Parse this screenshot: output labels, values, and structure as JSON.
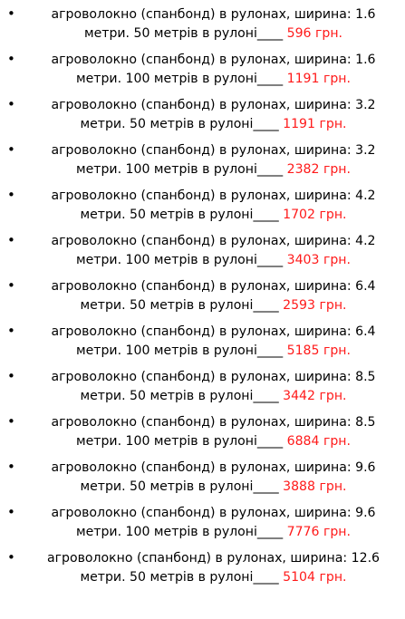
{
  "colors": {
    "text": "#000000",
    "price": "#ff1a1a",
    "background": "#ffffff"
  },
  "bullet_glyph": "•",
  "items": [
    {
      "line1": "агроволокно (спанбонд) в рулонах, ширина: 1.6",
      "line2": "метри. 50 метрів в рулоні____",
      "price": "596 грн."
    },
    {
      "line1": "агроволокно (спанбонд) в рулонах, ширина: 1.6",
      "line2": "метри. 100 метрів в рулоні____",
      "price": "1191 грн."
    },
    {
      "line1": "агроволокно (спанбонд) в рулонах, ширина: 3.2",
      "line2": "метри. 50 метрів в рулоні____",
      "price": "1191 грн."
    },
    {
      "line1": "агроволокно (спанбонд) в рулонах, ширина: 3.2",
      "line2": "метри. 100 метрів в рулоні____",
      "price": "2382 грн."
    },
    {
      "line1": "агроволокно (спанбонд) в рулонах, ширина: 4.2",
      "line2": "метри. 50 метрів в рулоні____",
      "price": "1702 грн."
    },
    {
      "line1": "агроволокно (спанбонд) в рулонах, ширина: 4.2",
      "line2": "метри. 100 метрів в рулоні____",
      "price": "3403 грн."
    },
    {
      "line1": "агроволокно (спанбонд) в рулонах, ширина: 6.4",
      "line2": "метри. 50 метрів в рулоні____",
      "price": "2593 грн."
    },
    {
      "line1": "агроволокно (спанбонд) в рулонах, ширина: 6.4",
      "line2": "метри. 100 метрів в рулоні____",
      "price": "5185 грн."
    },
    {
      "line1": "агроволокно (спанбонд) в рулонах, ширина: 8.5",
      "line2": "метри. 50 метрів в рулоні____",
      "price": "3442 грн."
    },
    {
      "line1": "агроволокно (спанбонд) в рулонах, ширина: 8.5",
      "line2": "метри. 100 метрів в рулоні____",
      "price": "6884 грн."
    },
    {
      "line1": "агроволокно (спанбонд) в рулонах, ширина: 9.6",
      "line2": "метри. 50 метрів в рулоні____",
      "price": "3888 грн."
    },
    {
      "line1": "агроволокно (спанбонд) в рулонах, ширина: 9.6",
      "line2": "метри. 100 метрів в рулоні____",
      "price": "7776 грн."
    },
    {
      "line1": "агроволокно (спанбонд) в рулонах, ширина: 12.6",
      "line2": "метри. 50 метрів в рулоні____",
      "price": "5104 грн."
    }
  ]
}
